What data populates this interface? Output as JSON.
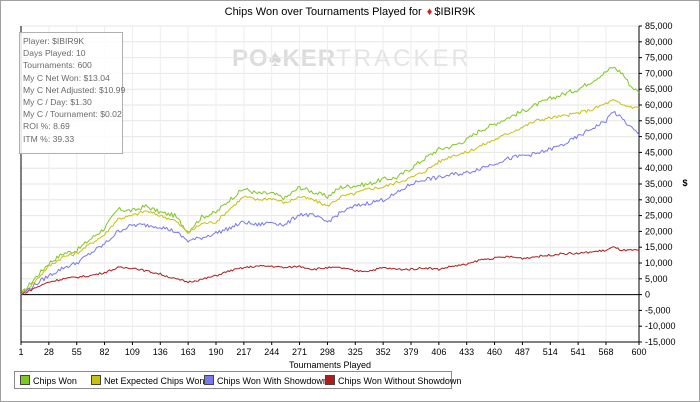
{
  "chart_data": {
    "type": "line",
    "title_text": "Chips Won over Tournaments Played for",
    "title_player": "$IBIR9K",
    "title_suit_icon": "diamond-suit-icon",
    "xlabel": "Tournaments Played",
    "ylabel": "$",
    "xlim": [
      1,
      600
    ],
    "ylim": [
      -15000,
      85000
    ],
    "x_ticks": [
      "1",
      "28",
      "55",
      "82",
      "109",
      "136",
      "163",
      "190",
      "217",
      "244",
      "271",
      "298",
      "325",
      "352",
      "379",
      "406",
      "433",
      "460",
      "487",
      "514",
      "541",
      "568",
      "600"
    ],
    "y_ticks": [
      "85,000",
      "80,000",
      "75,000",
      "70,000",
      "65,000",
      "60,000",
      "55,000",
      "50,000",
      "45,000",
      "40,000",
      "35,000",
      "30,000",
      "25,000",
      "20,000",
      "15,000",
      "10,000",
      "5,000",
      "0",
      "-5,000",
      "-10,000",
      "-15,000"
    ],
    "grid": true,
    "legend_placement": "bottom",
    "watermark": "POKERTRACKER",
    "series": [
      {
        "name": "Chips Won",
        "color": "#7ec820",
        "x": [
          1,
          14,
          28,
          42,
          55,
          68,
          82,
          95,
          109,
          122,
          136,
          150,
          163,
          176,
          190,
          203,
          217,
          230,
          244,
          257,
          271,
          284,
          298,
          311,
          325,
          338,
          352,
          365,
          379,
          392,
          406,
          419,
          433,
          446,
          460,
          473,
          487,
          500,
          514,
          527,
          541,
          554,
          568,
          575,
          584,
          592,
          600
        ],
        "y": [
          0,
          5000,
          10000,
          13000,
          14000,
          17500,
          21000,
          27000,
          26500,
          28000,
          26000,
          25000,
          20000,
          24500,
          26000,
          30000,
          33500,
          32000,
          32000,
          30500,
          34000,
          32500,
          31000,
          34000,
          34500,
          35000,
          36500,
          37000,
          40000,
          43000,
          46000,
          47000,
          49000,
          52000,
          54000,
          56000,
          58000,
          60000,
          62000,
          63500,
          65000,
          67500,
          70500,
          72000,
          70000,
          66000,
          64000
        ]
      },
      {
        "name": "Net Expected Chips Won",
        "color": "#c8c010",
        "x": [
          1,
          14,
          28,
          42,
          55,
          68,
          82,
          95,
          109,
          122,
          136,
          150,
          163,
          176,
          190,
          203,
          217,
          230,
          244,
          257,
          271,
          284,
          298,
          311,
          325,
          338,
          352,
          365,
          379,
          392,
          406,
          419,
          433,
          446,
          460,
          473,
          487,
          500,
          514,
          527,
          541,
          554,
          568,
          575,
          584,
          592,
          600
        ],
        "y": [
          0,
          4000,
          9000,
          12000,
          13000,
          16000,
          19000,
          24000,
          25000,
          26500,
          25000,
          23500,
          19500,
          22500,
          23000,
          27000,
          31000,
          30000,
          30500,
          29000,
          31000,
          30000,
          28000,
          31000,
          32000,
          33500,
          34000,
          35500,
          37000,
          39000,
          42000,
          44000,
          45000,
          47000,
          49000,
          51000,
          53000,
          55000,
          56000,
          56500,
          57500,
          58500,
          60500,
          61500,
          60000,
          59500,
          59000
        ]
      },
      {
        "name": "Chips Won With Showdown",
        "color": "#7878f0",
        "x": [
          1,
          14,
          28,
          42,
          55,
          68,
          82,
          95,
          109,
          122,
          136,
          150,
          163,
          176,
          190,
          203,
          217,
          230,
          244,
          257,
          271,
          284,
          298,
          311,
          325,
          338,
          352,
          365,
          379,
          392,
          406,
          419,
          433,
          446,
          460,
          473,
          487,
          500,
          514,
          527,
          541,
          554,
          568,
          575,
          584,
          592,
          600
        ],
        "y": [
          0,
          3000,
          6000,
          8500,
          10000,
          13000,
          16000,
          20000,
          22000,
          22000,
          21500,
          20000,
          17000,
          18000,
          19500,
          21000,
          23000,
          22000,
          23000,
          22000,
          25500,
          25000,
          23000,
          26000,
          28000,
          29000,
          30000,
          32000,
          35000,
          36500,
          37000,
          38000,
          38500,
          40000,
          41500,
          43000,
          44000,
          44500,
          46000,
          47500,
          50000,
          52500,
          55000,
          58000,
          55500,
          53000,
          50500
        ]
      },
      {
        "name": "Chips Won Without Showdown",
        "color": "#b01c1c",
        "x": [
          1,
          14,
          28,
          42,
          55,
          68,
          82,
          95,
          109,
          122,
          136,
          150,
          163,
          176,
          190,
          203,
          217,
          230,
          244,
          257,
          271,
          284,
          298,
          311,
          325,
          338,
          352,
          365,
          379,
          392,
          406,
          419,
          433,
          446,
          460,
          473,
          487,
          500,
          514,
          527,
          541,
          554,
          568,
          575,
          584,
          592,
          600
        ],
        "y": [
          0,
          2000,
          4000,
          5000,
          5500,
          6000,
          7000,
          8500,
          8500,
          7500,
          6500,
          5000,
          4000,
          4800,
          6000,
          7500,
          8500,
          9000,
          9000,
          8500,
          9000,
          8000,
          8500,
          8500,
          7500,
          7500,
          8500,
          8000,
          8000,
          8500,
          8000,
          9000,
          9500,
          11000,
          11500,
          12000,
          11500,
          12000,
          12500,
          13000,
          13000,
          13500,
          14000,
          15000,
          14000,
          14000,
          14000
        ]
      }
    ]
  },
  "info_box": [
    "Player: $IBIR9K",
    "Days Played: 10",
    "Tournaments: 600",
    "My C Net Won: $13.04",
    "My C Net Adjusted: $10.99",
    "My C / Day: $1.30",
    "My C / Tournament: $0.02",
    "ROI %: 8.69",
    "ITM %: 39.33"
  ]
}
